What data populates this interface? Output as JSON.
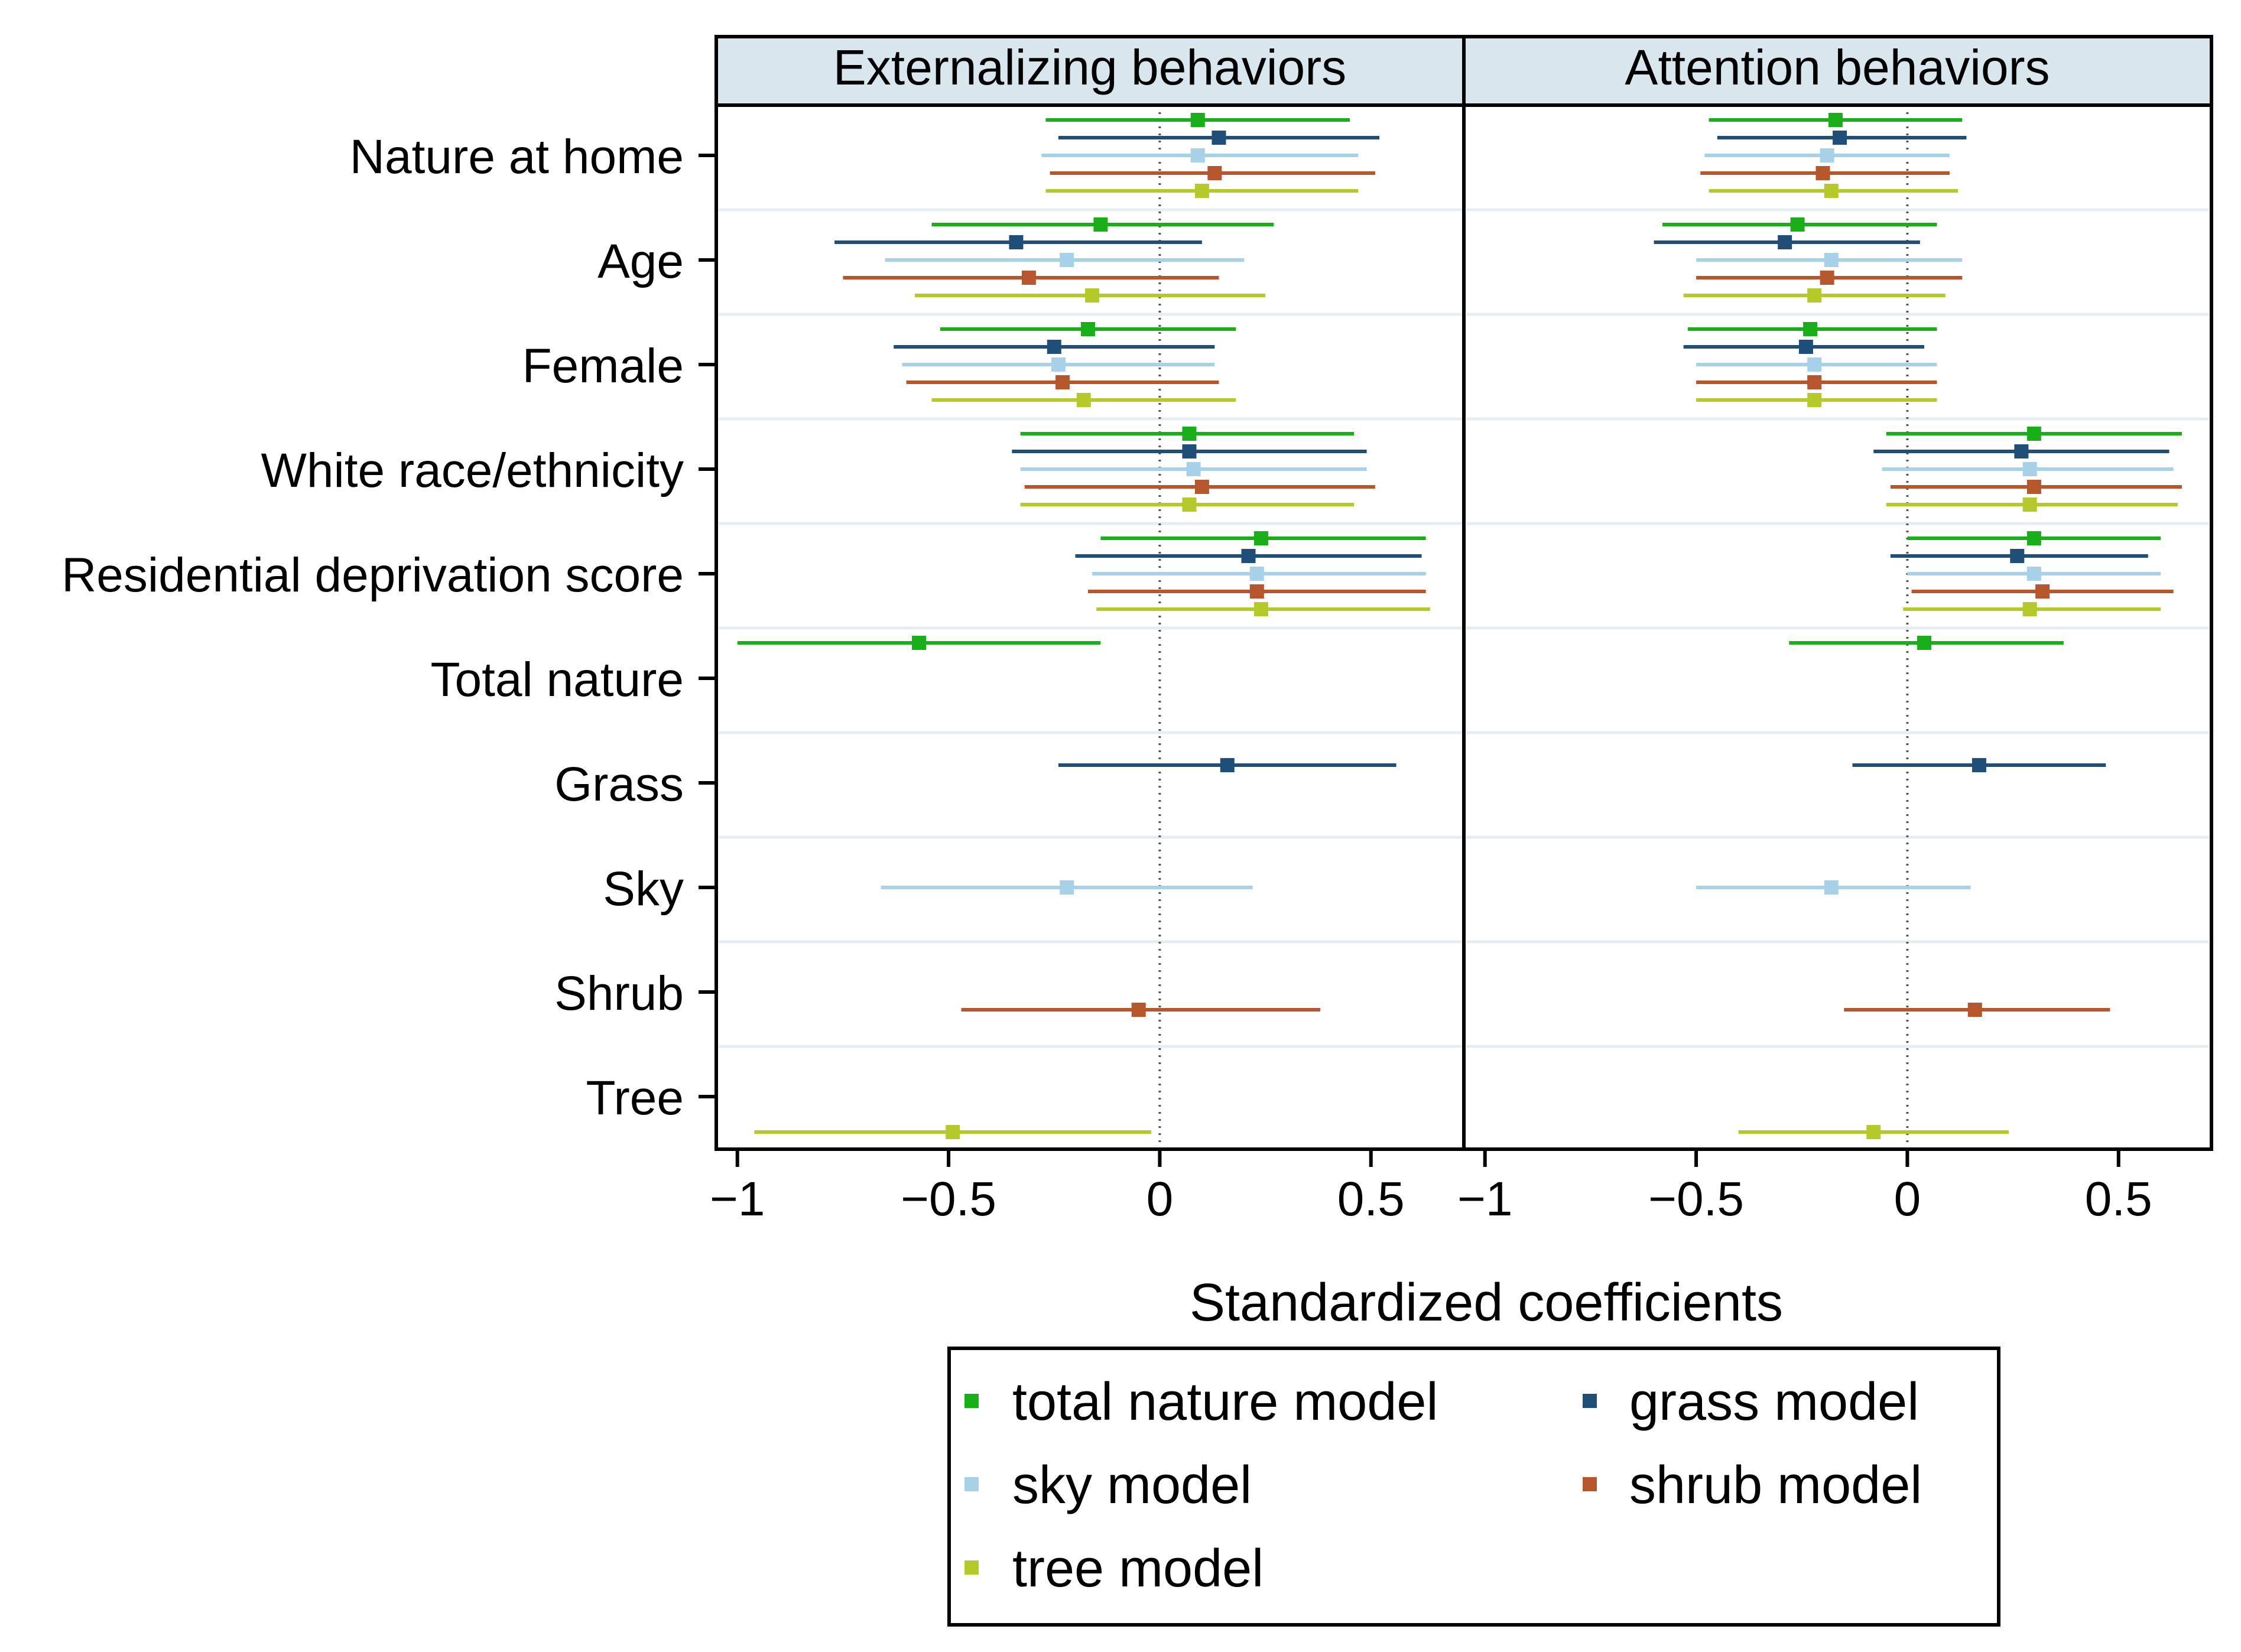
{
  "chart_data": {
    "type": "coefficient_plot",
    "xlabel": "Standardized coefficients",
    "xlim": [
      -1.05,
      0.72
    ],
    "x_ticks": [
      -1,
      -0.5,
      0,
      0.5
    ],
    "x_tick_labels": [
      "−1",
      "−0.5",
      "0",
      "0.5"
    ],
    "reference_line": 0,
    "panels": [
      "Externalizing behaviors",
      "Attention behaviors"
    ],
    "categories": [
      "Nature at home",
      "Age",
      "Female",
      "White race/ethnicity",
      "Residential deprivation score",
      "Total nature",
      "Grass",
      "Sky",
      "Shrub",
      "Tree"
    ],
    "series": [
      {
        "name": "total nature model",
        "color": "#1aae1a",
        "points": [
          {
            "panel": 0,
            "category": 0,
            "est": 0.09,
            "lo": -0.27,
            "hi": 0.45
          },
          {
            "panel": 0,
            "category": 1,
            "est": -0.14,
            "lo": -0.54,
            "hi": 0.27
          },
          {
            "panel": 0,
            "category": 2,
            "est": -0.17,
            "lo": -0.52,
            "hi": 0.18
          },
          {
            "panel": 0,
            "category": 3,
            "est": 0.07,
            "lo": -0.33,
            "hi": 0.46
          },
          {
            "panel": 0,
            "category": 4,
            "est": 0.24,
            "lo": -0.14,
            "hi": 0.63
          },
          {
            "panel": 0,
            "category": 5,
            "est": -0.57,
            "lo": -1.0,
            "hi": -0.14
          },
          {
            "panel": 1,
            "category": 0,
            "est": -0.17,
            "lo": -0.47,
            "hi": 0.13
          },
          {
            "panel": 1,
            "category": 1,
            "est": -0.26,
            "lo": -0.58,
            "hi": 0.07
          },
          {
            "panel": 1,
            "category": 2,
            "est": -0.23,
            "lo": -0.52,
            "hi": 0.07
          },
          {
            "panel": 1,
            "category": 3,
            "est": 0.3,
            "lo": -0.05,
            "hi": 0.65
          },
          {
            "panel": 1,
            "category": 4,
            "est": 0.3,
            "lo": 0.0,
            "hi": 0.6
          },
          {
            "panel": 1,
            "category": 5,
            "est": 0.04,
            "lo": -0.28,
            "hi": 0.37
          }
        ]
      },
      {
        "name": "grass model",
        "color": "#1f4e79",
        "points": [
          {
            "panel": 0,
            "category": 0,
            "est": 0.14,
            "lo": -0.24,
            "hi": 0.52
          },
          {
            "panel": 0,
            "category": 1,
            "est": -0.34,
            "lo": -0.77,
            "hi": 0.1
          },
          {
            "panel": 0,
            "category": 2,
            "est": -0.25,
            "lo": -0.63,
            "hi": 0.13
          },
          {
            "panel": 0,
            "category": 3,
            "est": 0.07,
            "lo": -0.35,
            "hi": 0.49
          },
          {
            "panel": 0,
            "category": 4,
            "est": 0.21,
            "lo": -0.2,
            "hi": 0.62
          },
          {
            "panel": 0,
            "category": 6,
            "est": 0.16,
            "lo": -0.24,
            "hi": 0.56
          },
          {
            "panel": 1,
            "category": 0,
            "est": -0.16,
            "lo": -0.45,
            "hi": 0.14
          },
          {
            "panel": 1,
            "category": 1,
            "est": -0.29,
            "lo": -0.6,
            "hi": 0.03
          },
          {
            "panel": 1,
            "category": 2,
            "est": -0.24,
            "lo": -0.53,
            "hi": 0.04
          },
          {
            "panel": 1,
            "category": 3,
            "est": 0.27,
            "lo": -0.08,
            "hi": 0.62
          },
          {
            "panel": 1,
            "category": 4,
            "est": 0.26,
            "lo": -0.04,
            "hi": 0.57
          },
          {
            "panel": 1,
            "category": 6,
            "est": 0.17,
            "lo": -0.13,
            "hi": 0.47
          }
        ]
      },
      {
        "name": "sky model",
        "color": "#a6d1e8",
        "points": [
          {
            "panel": 0,
            "category": 0,
            "est": 0.09,
            "lo": -0.28,
            "hi": 0.47
          },
          {
            "panel": 0,
            "category": 1,
            "est": -0.22,
            "lo": -0.65,
            "hi": 0.2
          },
          {
            "panel": 0,
            "category": 2,
            "est": -0.24,
            "lo": -0.61,
            "hi": 0.13
          },
          {
            "panel": 0,
            "category": 3,
            "est": 0.08,
            "lo": -0.33,
            "hi": 0.49
          },
          {
            "panel": 0,
            "category": 4,
            "est": 0.23,
            "lo": -0.16,
            "hi": 0.63
          },
          {
            "panel": 0,
            "category": 7,
            "est": -0.22,
            "lo": -0.66,
            "hi": 0.22
          },
          {
            "panel": 1,
            "category": 0,
            "est": -0.19,
            "lo": -0.48,
            "hi": 0.1
          },
          {
            "panel": 1,
            "category": 1,
            "est": -0.18,
            "lo": -0.5,
            "hi": 0.13
          },
          {
            "panel": 1,
            "category": 2,
            "est": -0.22,
            "lo": -0.5,
            "hi": 0.07
          },
          {
            "panel": 1,
            "category": 3,
            "est": 0.29,
            "lo": -0.06,
            "hi": 0.63
          },
          {
            "panel": 1,
            "category": 4,
            "est": 0.3,
            "lo": 0.0,
            "hi": 0.6
          },
          {
            "panel": 1,
            "category": 7,
            "est": -0.18,
            "lo": -0.5,
            "hi": 0.15
          }
        ]
      },
      {
        "name": "shrub model",
        "color": "#b5562c",
        "points": [
          {
            "panel": 0,
            "category": 0,
            "est": 0.13,
            "lo": -0.26,
            "hi": 0.51
          },
          {
            "panel": 0,
            "category": 1,
            "est": -0.31,
            "lo": -0.75,
            "hi": 0.14
          },
          {
            "panel": 0,
            "category": 2,
            "est": -0.23,
            "lo": -0.6,
            "hi": 0.14
          },
          {
            "panel": 0,
            "category": 3,
            "est": 0.1,
            "lo": -0.32,
            "hi": 0.51
          },
          {
            "panel": 0,
            "category": 4,
            "est": 0.23,
            "lo": -0.17,
            "hi": 0.63
          },
          {
            "panel": 0,
            "category": 8,
            "est": -0.05,
            "lo": -0.47,
            "hi": 0.38
          },
          {
            "panel": 1,
            "category": 0,
            "est": -0.2,
            "lo": -0.49,
            "hi": 0.1
          },
          {
            "panel": 1,
            "category": 1,
            "est": -0.19,
            "lo": -0.5,
            "hi": 0.13
          },
          {
            "panel": 1,
            "category": 2,
            "est": -0.22,
            "lo": -0.5,
            "hi": 0.07
          },
          {
            "panel": 1,
            "category": 3,
            "est": 0.3,
            "lo": -0.04,
            "hi": 0.65
          },
          {
            "panel": 1,
            "category": 4,
            "est": 0.32,
            "lo": 0.01,
            "hi": 0.63
          },
          {
            "panel": 1,
            "category": 8,
            "est": 0.16,
            "lo": -0.15,
            "hi": 0.48
          }
        ]
      },
      {
        "name": "tree model",
        "color": "#b6c92a",
        "points": [
          {
            "panel": 0,
            "category": 0,
            "est": 0.1,
            "lo": -0.27,
            "hi": 0.47
          },
          {
            "panel": 0,
            "category": 1,
            "est": -0.16,
            "lo": -0.58,
            "hi": 0.25
          },
          {
            "panel": 0,
            "category": 2,
            "est": -0.18,
            "lo": -0.54,
            "hi": 0.18
          },
          {
            "panel": 0,
            "category": 3,
            "est": 0.07,
            "lo": -0.33,
            "hi": 0.46
          },
          {
            "panel": 0,
            "category": 4,
            "est": 0.24,
            "lo": -0.15,
            "hi": 0.64
          },
          {
            "panel": 0,
            "category": 9,
            "est": -0.49,
            "lo": -0.96,
            "hi": -0.02
          },
          {
            "panel": 1,
            "category": 0,
            "est": -0.18,
            "lo": -0.47,
            "hi": 0.12
          },
          {
            "panel": 1,
            "category": 1,
            "est": -0.22,
            "lo": -0.53,
            "hi": 0.09
          },
          {
            "panel": 1,
            "category": 2,
            "est": -0.22,
            "lo": -0.5,
            "hi": 0.07
          },
          {
            "panel": 1,
            "category": 3,
            "est": 0.29,
            "lo": -0.05,
            "hi": 0.64
          },
          {
            "panel": 1,
            "category": 4,
            "est": 0.29,
            "lo": -0.01,
            "hi": 0.6
          },
          {
            "panel": 1,
            "category": 9,
            "est": -0.08,
            "lo": -0.4,
            "hi": 0.24
          }
        ]
      }
    ],
    "legend": {
      "position": "bottom",
      "entries": [
        "total nature model",
        "grass model",
        "sky model",
        "shrub model",
        "tree model"
      ]
    }
  }
}
